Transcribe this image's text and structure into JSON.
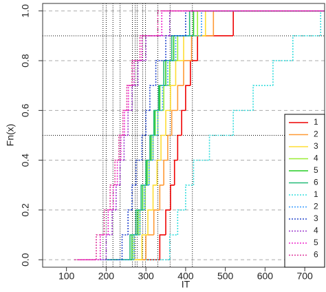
{
  "chart_data": {
    "type": "ecdf",
    "xlabel": "IT",
    "ylabel": "Fn(x)",
    "xlim": [
      40,
      750
    ],
    "ylim": [
      -0.03,
      1.03
    ],
    "xticks": [
      100,
      200,
      300,
      400,
      500,
      600,
      700
    ],
    "yticks": [
      {
        "value": 0,
        "label": "0.0"
      },
      0.2,
      0.4,
      0.6,
      0.8,
      {
        "value": 1,
        "label": "1.0"
      }
    ],
    "hlines": [
      0.5,
      0.9
    ],
    "vlines": [
      192,
      200,
      217,
      235,
      266,
      273,
      278,
      292,
      299,
      330,
      361,
      417
    ],
    "legend": "bottom-right",
    "series": [
      {
        "name": "1",
        "color": "#ee0000",
        "dash": false,
        "x": [
          280,
          335,
          350,
          362,
          372,
          380,
          390,
          400,
          412,
          430,
          520
        ],
        "values": [
          0,
          0.1,
          0.2,
          0.3,
          0.4,
          0.5,
          0.6,
          0.7,
          0.8,
          0.9,
          1
        ]
      },
      {
        "name": "2",
        "color": "#ff9933",
        "dash": false,
        "x": [
          250,
          300,
          320,
          335,
          345,
          355,
          365,
          380,
          395,
          415,
          470
        ],
        "values": [
          0,
          0.1,
          0.2,
          0.3,
          0.4,
          0.5,
          0.6,
          0.7,
          0.8,
          0.9,
          1
        ]
      },
      {
        "name": "3",
        "color": "#ffdd33",
        "dash": false,
        "x": [
          240,
          290,
          305,
          318,
          328,
          338,
          350,
          362,
          375,
          395,
          450
        ],
        "values": [
          0,
          0.1,
          0.2,
          0.3,
          0.4,
          0.5,
          0.6,
          0.7,
          0.8,
          0.9,
          1
        ]
      },
      {
        "name": "4",
        "color": "#99ee33",
        "dash": false,
        "x": [
          220,
          270,
          285,
          298,
          308,
          318,
          330,
          345,
          360,
          380,
          430
        ],
        "values": [
          0,
          0.1,
          0.2,
          0.3,
          0.4,
          0.5,
          0.6,
          0.7,
          0.8,
          0.9,
          1
        ]
      },
      {
        "name": "5",
        "color": "#22cc22",
        "dash": false,
        "x": [
          210,
          265,
          280,
          292,
          303,
          313,
          323,
          335,
          350,
          370,
          420
        ],
        "values": [
          0,
          0.1,
          0.2,
          0.3,
          0.4,
          0.5,
          0.6,
          0.7,
          0.8,
          0.9,
          1
        ]
      },
      {
        "name": "6",
        "color": "#22bb77",
        "dash": false,
        "x": [
          200,
          260,
          275,
          288,
          300,
          310,
          320,
          332,
          345,
          365,
          410
        ],
        "values": [
          0,
          0.1,
          0.2,
          0.3,
          0.4,
          0.5,
          0.6,
          0.7,
          0.8,
          0.9,
          1
        ]
      },
      {
        "name": "1",
        "color": "#33dddd",
        "dash": true,
        "x": [
          300,
          360,
          380,
          400,
          420,
          460,
          520,
          570,
          620,
          670,
          740
        ],
        "values": [
          0,
          0.1,
          0.2,
          0.3,
          0.4,
          0.5,
          0.6,
          0.7,
          0.8,
          0.9,
          1
        ]
      },
      {
        "name": "2",
        "color": "#3399ff",
        "dash": true,
        "x": [
          230,
          270,
          285,
          297,
          308,
          318,
          330,
          342,
          355,
          375,
          440
        ],
        "values": [
          0,
          0.1,
          0.2,
          0.3,
          0.4,
          0.5,
          0.6,
          0.7,
          0.8,
          0.9,
          1
        ]
      },
      {
        "name": "3",
        "color": "#2244cc",
        "dash": true,
        "x": [
          190,
          240,
          255,
          265,
          275,
          290,
          300,
          310,
          325,
          350,
          400
        ],
        "values": [
          0,
          0.1,
          0.2,
          0.3,
          0.4,
          0.5,
          0.6,
          0.7,
          0.8,
          0.9,
          1
        ]
      },
      {
        "name": "4",
        "color": "#9933cc",
        "dash": true,
        "x": [
          150,
          200,
          215,
          225,
          235,
          245,
          255,
          265,
          280,
          300,
          360
        ],
        "values": [
          0,
          0.1,
          0.2,
          0.3,
          0.4,
          0.5,
          0.6,
          0.7,
          0.8,
          0.9,
          1
        ]
      },
      {
        "name": "5",
        "color": "#ee22cc",
        "dash": true,
        "x": [
          130,
          185,
          205,
          218,
          228,
          237,
          246,
          256,
          270,
          290,
          340
        ],
        "values": [
          0,
          0.1,
          0.2,
          0.3,
          0.4,
          0.5,
          0.6,
          0.7,
          0.8,
          0.9,
          1
        ]
      },
      {
        "name": "6",
        "color": "#dd3399",
        "dash": true,
        "x": [
          120,
          175,
          195,
          210,
          222,
          232,
          242,
          252,
          265,
          285,
          330
        ],
        "values": [
          0,
          0.1,
          0.2,
          0.3,
          0.4,
          0.5,
          0.6,
          0.7,
          0.8,
          0.9,
          1
        ]
      }
    ]
  }
}
